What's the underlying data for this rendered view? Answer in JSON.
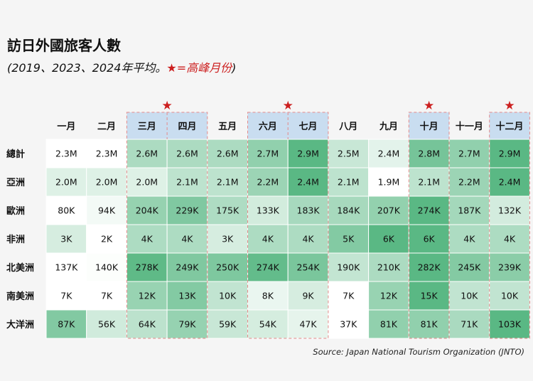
{
  "title": "訪日外國旅客人數",
  "subtitle_main": "(2019、2023、2024年平均。",
  "subtitle_highlight": "★=高峰月份",
  "subtitle_end": ")",
  "source": "Source: Japan National Tourism Organization (JNTO)",
  "colors": {
    "peak_header_bg": "#c9ddf0",
    "peak_star": "#cc1f1f",
    "peak_border": "#e58a8a",
    "heat_low": "#ffffff",
    "heat_high": "#5ab884"
  },
  "chart_data": {
    "type": "heatmap",
    "title": "訪日外國旅客人數",
    "subtitle": "(2019、2023、2024年平均。★=高峰月份)",
    "columns": [
      "一月",
      "二月",
      "三月",
      "四月",
      "五月",
      "六月",
      "七月",
      "八月",
      "九月",
      "十月",
      "十一月",
      "十二月"
    ],
    "peak_columns": [
      2,
      3,
      5,
      6,
      9,
      11
    ],
    "peak_marker": "★",
    "rows": [
      {
        "name": "總計",
        "labels": [
          "2.3M",
          "2.3M",
          "2.6M",
          "2.6M",
          "2.6M",
          "2.7M",
          "2.9M",
          "2.5M",
          "2.4M",
          "2.8M",
          "2.7M",
          "2.9M"
        ],
        "values": [
          2.3,
          2.3,
          2.6,
          2.6,
          2.6,
          2.7,
          2.9,
          2.5,
          2.4,
          2.8,
          2.7,
          2.9
        ]
      },
      {
        "name": "亞洲",
        "labels": [
          "2.0M",
          "2.0M",
          "2.0M",
          "2.1M",
          "2.1M",
          "2.2M",
          "2.4M",
          "2.1M",
          "1.9M",
          "2.1M",
          "2.2M",
          "2.4M"
        ],
        "values": [
          2.0,
          2.0,
          2.0,
          2.1,
          2.1,
          2.2,
          2.4,
          2.1,
          1.9,
          2.1,
          2.2,
          2.4
        ]
      },
      {
        "name": "歐洲",
        "labels": [
          "80K",
          "94K",
          "204K",
          "229K",
          "175K",
          "133K",
          "183K",
          "184K",
          "207K",
          "274K",
          "187K",
          "132K"
        ],
        "values": [
          80,
          94,
          204,
          229,
          175,
          133,
          183,
          184,
          207,
          274,
          187,
          132
        ]
      },
      {
        "name": "非洲",
        "labels": [
          "3K",
          "2K",
          "4K",
          "4K",
          "3K",
          "4K",
          "4K",
          "5K",
          "6K",
          "6K",
          "4K",
          "4K"
        ],
        "values": [
          3,
          2,
          4,
          4,
          3,
          4,
          4,
          5,
          6,
          6,
          4,
          4
        ]
      },
      {
        "name": "北美洲",
        "labels": [
          "137K",
          "140K",
          "278K",
          "249K",
          "250K",
          "274K",
          "254K",
          "190K",
          "210K",
          "282K",
          "245K",
          "239K"
        ],
        "values": [
          137,
          140,
          278,
          249,
          250,
          274,
          254,
          190,
          210,
          282,
          245,
          239
        ]
      },
      {
        "name": "南美洲",
        "labels": [
          "7K",
          "7K",
          "12K",
          "13K",
          "10K",
          "8K",
          "9K",
          "7K",
          "12K",
          "15K",
          "10K",
          "10K"
        ],
        "values": [
          7,
          7,
          12,
          13,
          10,
          8,
          9,
          7,
          12,
          15,
          10,
          10
        ]
      },
      {
        "name": "大洋洲",
        "labels": [
          "87K",
          "56K",
          "64K",
          "79K",
          "59K",
          "54K",
          "47K",
          "37K",
          "81K",
          "81K",
          "71K",
          "103K"
        ],
        "values": [
          87,
          56,
          64,
          79,
          59,
          54,
          47,
          37,
          81,
          81,
          71,
          103
        ]
      }
    ]
  }
}
